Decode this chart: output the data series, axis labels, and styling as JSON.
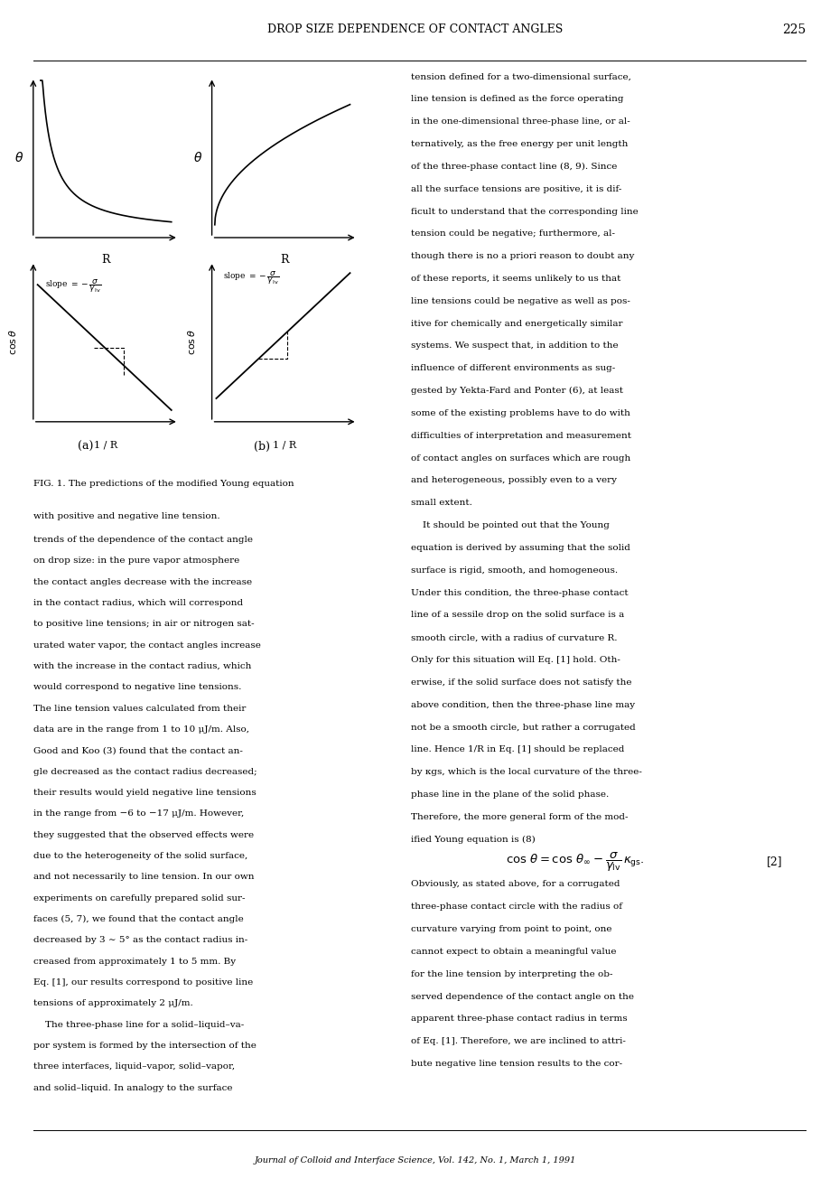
{
  "page_title": "DROP SIZE DEPENDENCE OF CONTACT ANGLES",
  "page_number": "225",
  "fig_caption_line1": "FIG. 1. The predictions of the modified Young equation",
  "fig_caption_line2": "with positive and negative line tension.",
  "journal_footer": "Journal of Colloid and Interface Science, Vol. 142, No. 1, March 1, 1991",
  "body_text_left": [
    "trends of the dependence of the contact angle",
    "on drop size: in the pure vapor atmosphere",
    "the contact angles decrease with the increase",
    "in the contact radius, which will correspond",
    "to positive line tensions; in air or nitrogen sat-",
    "urated water vapor, the contact angles increase",
    "with the increase in the contact radius, which",
    "would correspond to negative line tensions.",
    "The line tension values calculated from their",
    "data are in the range from 1 to 10 μJ/m. Also,",
    "Good and Koo (3) found that the contact an-",
    "gle decreased as the contact radius decreased;",
    "their results would yield negative line tensions",
    "in the range from −6 to −17 μJ/m. However,",
    "they suggested that the observed effects were",
    "due to the heterogeneity of the solid surface,",
    "and not necessarily to line tension. In our own",
    "experiments on carefully prepared solid sur-",
    "faces (5, 7), we found that the contact angle",
    "decreased by 3 ∼ 5° as the contact radius in-",
    "creased from approximately 1 to 5 mm. By",
    "Eq. [1], our results correspond to positive line",
    "tensions of approximately 2 μJ/m.",
    "    The three-phase line for a solid–liquid–va-",
    "por system is formed by the intersection of the",
    "three interfaces, liquid–vapor, solid–vapor,",
    "and solid–liquid. In analogy to the surface"
  ],
  "body_text_right": [
    "tension defined for a two-dimensional surface,",
    "line tension is defined as the force operating",
    "in the one-dimensional three-phase line, or al-",
    "ternatively, as the free energy per unit length",
    "of the three-phase contact line (8, 9). Since",
    "all the surface tensions are positive, it is dif-",
    "ficult to understand that the corresponding line",
    "tension could be negative; furthermore, al-",
    "though there is no a priori reason to doubt any",
    "of these reports, it seems unlikely to us that",
    "line tensions could be negative as well as pos-",
    "itive for chemically and energetically similar",
    "systems. We suspect that, in addition to the",
    "influence of different environments as sug-",
    "gested by Yekta-Fard and Ponter (6), at least",
    "some of the existing problems have to do with",
    "difficulties of interpretation and measurement",
    "of contact angles on surfaces which are rough",
    "and heterogeneous, possibly even to a very",
    "small extent.",
    "    It should be pointed out that the Young",
    "equation is derived by assuming that the solid",
    "surface is rigid, smooth, and homogeneous.",
    "Under this condition, the three-phase contact",
    "line of a sessile drop on the solid surface is a",
    "smooth circle, with a radius of curvature R.",
    "Only for this situation will Eq. [1] hold. Oth-",
    "erwise, if the solid surface does not satisfy the",
    "above condition, then the three-phase line may",
    "not be a smooth circle, but rather a corrugated",
    "line. Hence 1/R in Eq. [1] should be replaced",
    "by κgs, which is the local curvature of the three-",
    "phase line in the plane of the solid phase.",
    "Therefore, the more general form of the mod-",
    "ified Young equation is (8)",
    "EQ_PLACEHOLDER",
    "Obviously, as stated above, for a corrugated",
    "three-phase contact circle with the radius of",
    "curvature varying from point to point, one",
    "cannot expect to obtain a meaningful value",
    "for the line tension by interpreting the ob-",
    "served dependence of the contact angle on the",
    "apparent three-phase contact radius in terms",
    "of Eq. [1]. Therefore, we are inclined to attri-",
    "bute negative line tension results to the cor-"
  ],
  "background_color": "#ffffff",
  "text_color": "#000000"
}
